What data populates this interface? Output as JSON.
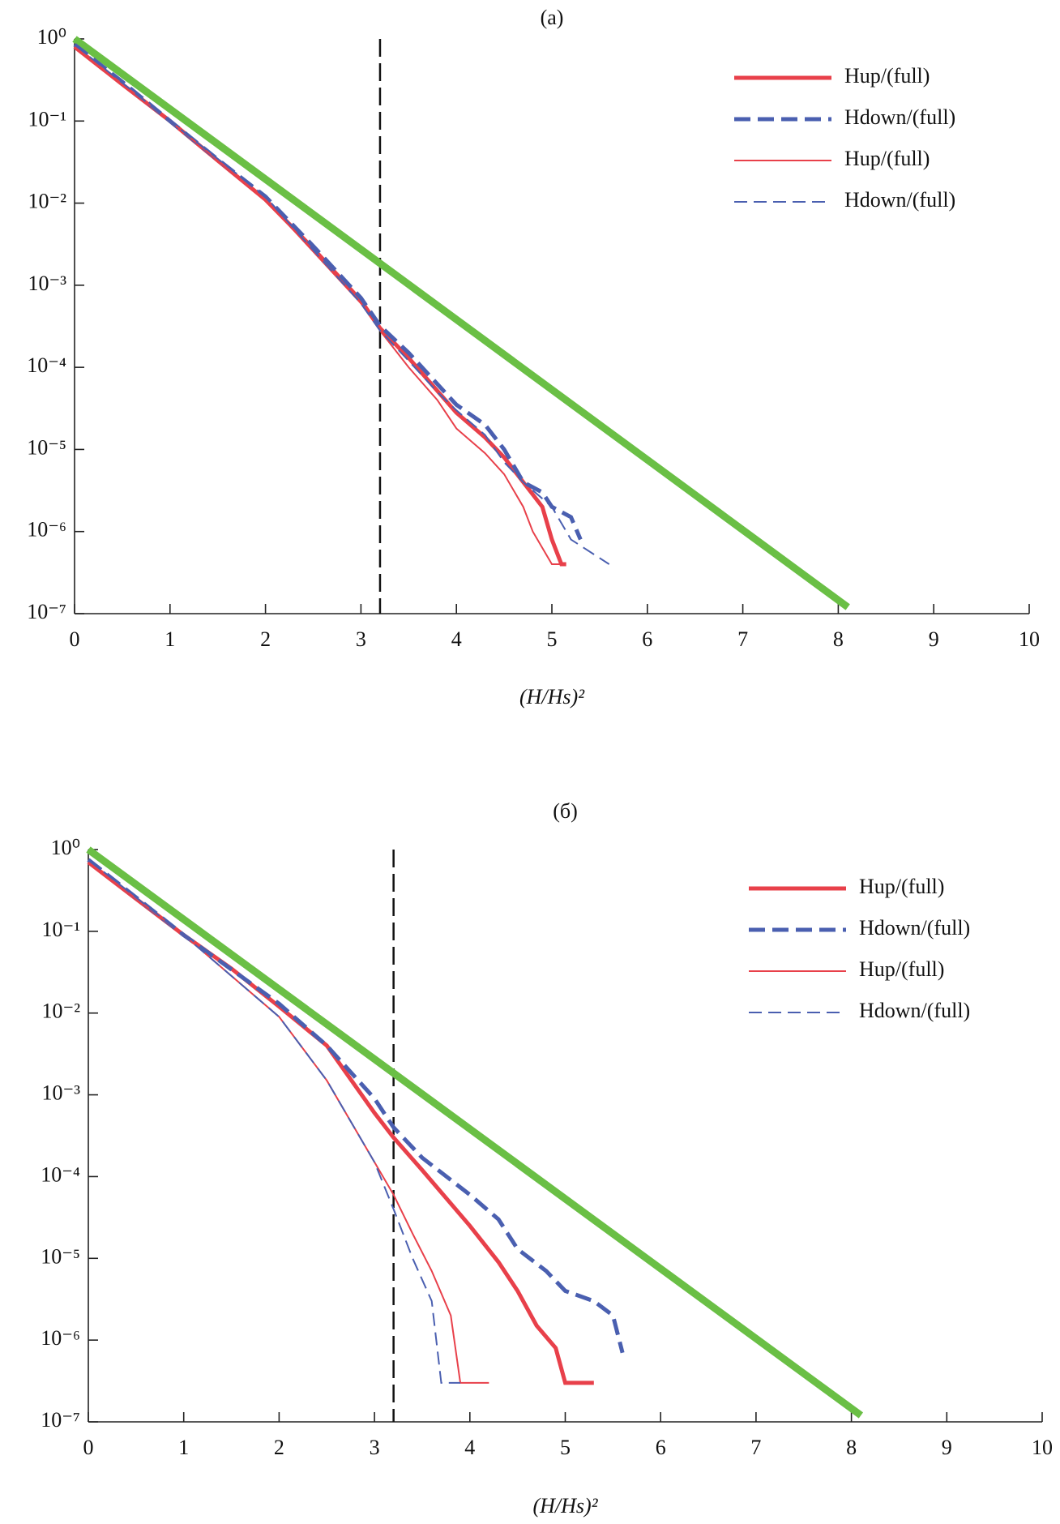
{
  "chart_data": [
    {
      "type": "line",
      "title": "(a)",
      "x_label": "(H/Hs)²",
      "log_y": true,
      "xlim": [
        0,
        10
      ],
      "xticks": [
        0,
        1,
        2,
        3,
        4,
        5,
        6,
        7,
        8,
        9,
        10
      ],
      "ylim": [
        1e-07,
        1
      ],
      "yticks": [
        {
          "value": 1,
          "label": "10⁰"
        },
        {
          "value": 0.1,
          "label": "10⁻¹"
        },
        {
          "value": 0.01,
          "label": "10⁻²"
        },
        {
          "value": 0.001,
          "label": "10⁻³"
        },
        {
          "value": 0.0001,
          "label": "10⁻⁴"
        },
        {
          "value": 1e-05,
          "label": "10⁻⁵"
        },
        {
          "value": 1e-06,
          "label": "10⁻⁶"
        },
        {
          "value": 1e-07,
          "label": "10⁻⁷"
        }
      ],
      "vlines": [
        3.2
      ],
      "legend": "upper-right",
      "series": [
        {
          "color": "#6abf45",
          "width": 9,
          "dashed": false,
          "x": [
            0,
            8.1
          ],
          "values": [
            1,
            1.2e-07
          ]
        },
        {
          "name": "Hup/(full)",
          "color": "#e8404a",
          "width": 5,
          "dashed": false,
          "x": [
            0,
            0.5,
            1,
            1.5,
            2,
            2.5,
            3,
            3.2,
            3.5,
            4,
            4.3,
            4.5,
            4.7,
            4.9,
            5.0,
            5.1,
            5.15
          ],
          "values": [
            0.8,
            0.28,
            0.1,
            0.033,
            0.011,
            0.0028,
            0.00065,
            0.0003,
            0.00013,
            2.8e-05,
            1.4e-05,
            8e-06,
            4e-06,
            2e-06,
            8e-07,
            4e-07,
            4e-07
          ]
        },
        {
          "name": "Hdown/(full)",
          "color": "#4a5fb0",
          "width": 5,
          "dashed": true,
          "x": [
            0,
            0.5,
            1,
            1.5,
            2,
            2.5,
            3,
            3.2,
            3.5,
            4,
            4.3,
            4.5,
            4.7,
            4.9,
            5.0,
            5.2,
            5.3
          ],
          "values": [
            0.85,
            0.3,
            0.1,
            0.034,
            0.012,
            0.003,
            0.0007,
            0.00032,
            0.00015,
            3.5e-05,
            2e-05,
            1e-05,
            4e-06,
            3e-06,
            2e-06,
            1.5e-06,
            8e-07
          ]
        },
        {
          "name": "Hup/(full)",
          "color": "#e8404a",
          "width": 2,
          "dashed": false,
          "x": [
            0,
            1,
            2,
            3,
            3.2,
            3.5,
            3.8,
            4,
            4.3,
            4.5,
            4.7,
            4.8,
            5.0,
            5.1
          ],
          "values": [
            0.8,
            0.1,
            0.011,
            0.0006,
            0.00028,
            0.0001,
            4e-05,
            1.8e-05,
            9e-06,
            5e-06,
            2e-06,
            1e-06,
            4e-07,
            4e-07
          ]
        },
        {
          "name": "Hdown/(full)",
          "color": "#4a5fb0",
          "width": 2,
          "dashed": true,
          "x": [
            0,
            1,
            2,
            3,
            3.2,
            3.5,
            3.8,
            4,
            4.3,
            4.5,
            4.7,
            5.0,
            5.2,
            5.6
          ],
          "values": [
            0.85,
            0.1,
            0.012,
            0.0006,
            0.00028,
            0.00012,
            5e-05,
            3e-05,
            1.5e-05,
            7e-06,
            4e-06,
            2e-06,
            8e-07,
            4e-07
          ]
        }
      ]
    },
    {
      "type": "line",
      "title": "(б)",
      "x_label": "(H/Hs)²",
      "log_y": true,
      "xlim": [
        0,
        10
      ],
      "xticks": [
        0,
        1,
        2,
        3,
        4,
        5,
        6,
        7,
        8,
        9,
        10
      ],
      "ylim": [
        1e-07,
        1
      ],
      "yticks": [
        {
          "value": 1,
          "label": "10⁰"
        },
        {
          "value": 0.1,
          "label": "10⁻¹"
        },
        {
          "value": 0.01,
          "label": "10⁻²"
        },
        {
          "value": 0.001,
          "label": "10⁻³"
        },
        {
          "value": 0.0001,
          "label": "10⁻⁴"
        },
        {
          "value": 1e-05,
          "label": "10⁻⁵"
        },
        {
          "value": 1e-06,
          "label": "10⁻⁶"
        },
        {
          "value": 1e-07,
          "label": "10⁻⁷"
        }
      ],
      "vlines": [
        3.2
      ],
      "legend": "upper-right",
      "series": [
        {
          "color": "#6abf45",
          "width": 9,
          "dashed": false,
          "x": [
            0,
            8.1
          ],
          "values": [
            1,
            1.2e-07
          ]
        },
        {
          "name": "Hup/(full)",
          "color": "#e8404a",
          "width": 5,
          "dashed": false,
          "x": [
            0,
            0.5,
            1,
            1.5,
            2,
            2.5,
            3,
            3.2,
            3.5,
            4,
            4.3,
            4.5,
            4.7,
            4.9,
            5.0,
            5.3
          ],
          "values": [
            0.7,
            0.25,
            0.09,
            0.035,
            0.012,
            0.004,
            0.0006,
            0.0003,
            0.00012,
            2.5e-05,
            9e-06,
            4e-06,
            1.5e-06,
            8e-07,
            3e-07,
            3e-07
          ]
        },
        {
          "name": "Hdown/(full)",
          "color": "#4a5fb0",
          "width": 5,
          "dashed": true,
          "x": [
            0,
            1,
            2,
            2.5,
            3,
            3.2,
            3.5,
            4,
            4.3,
            4.5,
            4.8,
            5.0,
            5.3,
            5.5,
            5.6
          ],
          "values": [
            0.75,
            0.09,
            0.013,
            0.004,
            0.0009,
            0.0004,
            0.00017,
            6e-05,
            3e-05,
            1.3e-05,
            7e-06,
            4e-06,
            3e-06,
            2e-06,
            7e-07
          ]
        },
        {
          "name": "Hup/(full)",
          "color": "#e8404a",
          "width": 2,
          "dashed": false,
          "x": [
            0,
            1,
            2,
            2.5,
            3,
            3.2,
            3.4,
            3.6,
            3.8,
            3.9,
            4.2
          ],
          "values": [
            0.7,
            0.09,
            0.009,
            0.0015,
            0.00015,
            6e-05,
            2e-05,
            7e-06,
            2e-06,
            3e-07,
            3e-07
          ]
        },
        {
          "name": "Hdown/(full)",
          "color": "#4a5fb0",
          "width": 2,
          "dashed": true,
          "x": [
            0,
            1,
            2,
            2.5,
            3,
            3.2,
            3.4,
            3.6,
            3.7,
            3.9
          ],
          "values": [
            0.75,
            0.09,
            0.009,
            0.0015,
            0.00015,
            4e-05,
            1e-05,
            3e-06,
            3e-07,
            3e-07
          ]
        }
      ]
    }
  ]
}
